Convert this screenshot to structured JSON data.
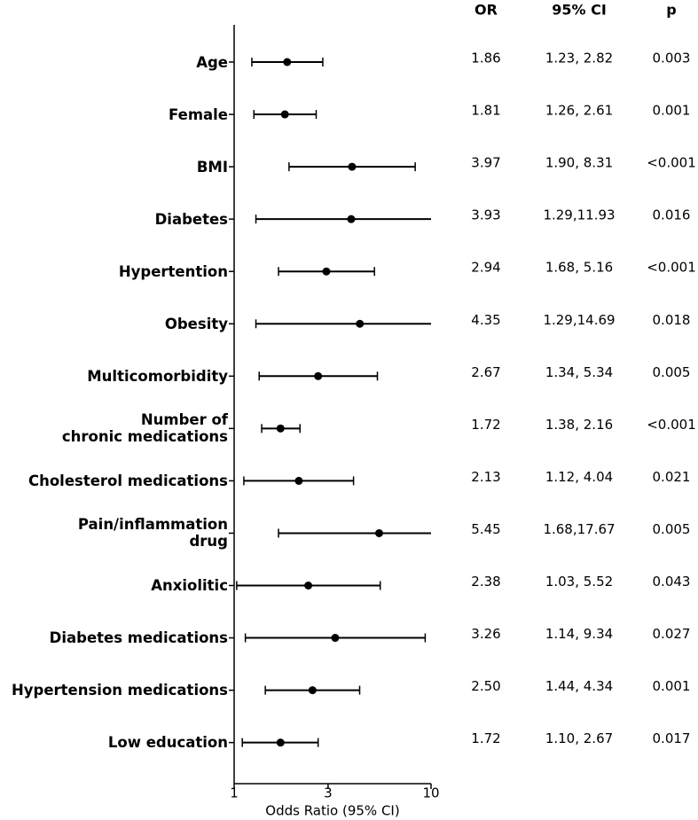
{
  "chart_data": {
    "type": "forest",
    "columns": [
      "OR",
      "95% CI",
      "p"
    ],
    "x_label": "Odds Ratio (95% CI)",
    "categories": [
      "Age",
      "Female",
      "BMI",
      "Diabetes",
      "Hypertention",
      "Obesity",
      "Multicomorbidity",
      "Number of\nchronic medications",
      "Cholesterol medications",
      "Pain/inflammation\ndrug",
      "Anxiolitic",
      "Diabetes medications",
      "Hypertension medications",
      "Low education"
    ],
    "values": [
      1.86,
      1.81,
      3.97,
      3.93,
      2.94,
      4.35,
      2.67,
      1.72,
      2.13,
      5.45,
      2.38,
      3.26,
      2.5,
      1.72
    ],
    "value_labels": [
      "1.86",
      "1.81",
      "3.97",
      "3.93",
      "2.94",
      "4.35",
      "2.67",
      "1.72",
      "2.13",
      "5.45",
      "2.38",
      "3.26",
      "2.50",
      "1.72"
    ],
    "lower": [
      1.23,
      1.26,
      1.9,
      1.29,
      1.68,
      1.29,
      1.34,
      1.38,
      1.12,
      1.68,
      1.03,
      1.14,
      1.44,
      1.1
    ],
    "upper": [
      2.82,
      2.61,
      8.31,
      11.93,
      5.16,
      14.69,
      5.34,
      2.16,
      4.04,
      17.67,
      5.52,
      9.34,
      4.34,
      2.67
    ],
    "ci_labels": [
      "1.23, 2.82",
      "1.26, 2.61",
      "1.90, 8.31",
      "1.29,11.93",
      "1.68, 5.16",
      "1.29,14.69",
      "1.34, 5.34",
      "1.38, 2.16",
      "1.12, 4.04",
      "1.68,17.67",
      "1.03, 5.52",
      "1.14, 9.34",
      "1.44, 4.34",
      "1.10, 2.67"
    ],
    "p_labels": [
      "0.003",
      "0.001",
      "<0.001",
      "0.016",
      "<0.001",
      "0.018",
      "0.005",
      "<0.001",
      "0.021",
      "0.005",
      "0.043",
      "0.027",
      "0.001",
      "0.017"
    ],
    "xlim": [
      1,
      10
    ],
    "xticks": [
      1,
      3,
      10
    ],
    "log_x": true,
    "color": "#000000"
  }
}
